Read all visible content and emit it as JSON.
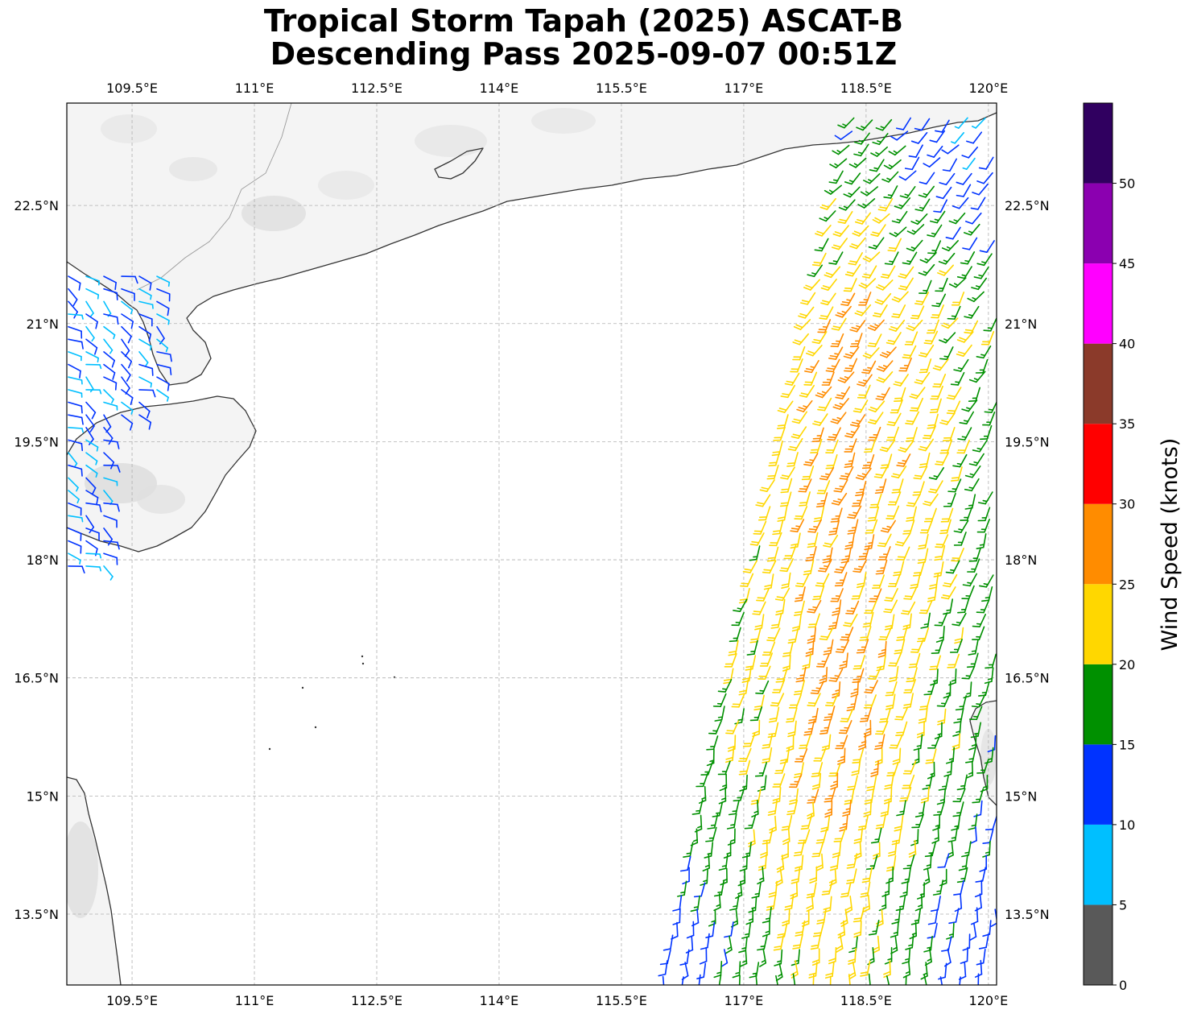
{
  "title": {
    "line1": "Tropical Storm Tapah (2025) ASCAT-B",
    "line2": "Descending Pass 2025-09-07 00:51Z"
  },
  "map": {
    "lon_range": [
      108.7,
      120.1
    ],
    "lat_range": [
      12.6,
      23.8
    ],
    "lon_ticks": [
      {
        "value": 109.5,
        "label": "109.5°E"
      },
      {
        "value": 111.0,
        "label": "111°E"
      },
      {
        "value": 112.5,
        "label": "112.5°E"
      },
      {
        "value": 114.0,
        "label": "114°E"
      },
      {
        "value": 115.5,
        "label": "115.5°E"
      },
      {
        "value": 117.0,
        "label": "117°E"
      },
      {
        "value": 118.5,
        "label": "118.5°E"
      },
      {
        "value": 120.0,
        "label": "120°E"
      }
    ],
    "lat_ticks": [
      {
        "value": 22.5,
        "label": "22.5°N"
      },
      {
        "value": 21.0,
        "label": "21°N"
      },
      {
        "value": 19.5,
        "label": "19.5°N"
      },
      {
        "value": 18.0,
        "label": "18°N"
      },
      {
        "value": 16.5,
        "label": "16.5°N"
      },
      {
        "value": 15.0,
        "label": "15°N"
      },
      {
        "value": 13.5,
        "label": "13.5°N"
      }
    ],
    "gridlines": true,
    "background": "#ffffff",
    "land_color": "#f4f4f4",
    "coastline_color": "#333333",
    "wind_barbs": true
  },
  "colorbar": {
    "title": "Wind Speed (knots)",
    "bounds": [
      0,
      5,
      10,
      15,
      20,
      25,
      30,
      35,
      40,
      45,
      50,
      55
    ],
    "tick_labels": [
      "0",
      "5",
      "10",
      "15",
      "20",
      "25",
      "30",
      "35",
      "40",
      "45",
      "50"
    ],
    "colors": [
      "#595959",
      "#00bfff",
      "#0033ff",
      "#009000",
      "#ffd700",
      "#ff8c00",
      "#ff0000",
      "#8b3a2a",
      "#ff00ff",
      "#8b00b0",
      "#300060"
    ]
  }
}
